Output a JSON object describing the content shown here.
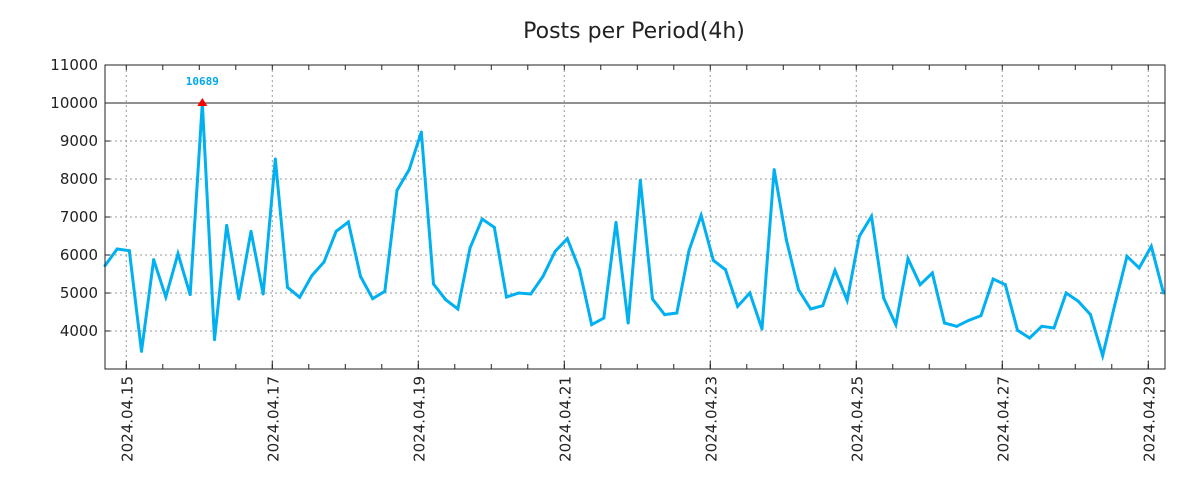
{
  "chart_data": {
    "type": "line",
    "title": "Posts per Period(4h)",
    "xlabel": "",
    "ylabel": "",
    "x_unit": "hours since 2024.04.15 00:00",
    "x_start_hours": -7,
    "step_hours": 4,
    "xlim": [
      -7,
      341.5
    ],
    "ylim": [
      3000,
      11000
    ],
    "yticks": [
      4000,
      5000,
      6000,
      7000,
      8000,
      9000,
      10000,
      11000
    ],
    "ytick_labels": [
      "4000",
      "5000",
      "6000",
      "7000",
      "8000",
      "9000",
      "10000",
      "11000"
    ],
    "xticks_hours": [
      0,
      48,
      96,
      144,
      192,
      240,
      288,
      336
    ],
    "xtick_labels": [
      "2024.04.15",
      "2024.04.17",
      "2024.04.19",
      "2024.04.21",
      "2024.04.23",
      "2024.04.25",
      "2024.04.27",
      "2024.04.29"
    ],
    "minor_xtick_step_hours": 12,
    "threshold_line": 10000,
    "grid": true,
    "series": [
      {
        "name": "Posts",
        "color": "#00b0f0",
        "values": [
          5719,
          6158,
          6114,
          3465,
          5877,
          4895,
          6035,
          4956,
          10689,
          3772,
          6781,
          4842,
          6623,
          4974,
          8526,
          5149,
          4886,
          5456,
          5816,
          6623,
          6868,
          5439,
          4851,
          5044,
          7702,
          8246,
          9237,
          5237,
          4825,
          4579,
          6184,
          6947,
          6728,
          4895,
          5000,
          4974,
          5439,
          6096,
          6430,
          5614,
          4167,
          4342,
          6860,
          4211,
          7965,
          4842,
          4430,
          4474,
          6114,
          7044,
          5860,
          5614,
          4649,
          5000,
          4053,
          8246,
          6404,
          5088,
          4579,
          4667,
          5596,
          4807,
          6491,
          7018,
          4868,
          4167,
          5904,
          5219,
          5526,
          4211,
          4123,
          4281,
          4404,
          5368,
          5219,
          4018,
          3816,
          4123,
          4079,
          5000,
          4781,
          4430,
          3351,
          4693,
          5965,
          5658,
          6228,
          5000
        ]
      }
    ],
    "annotations": [
      {
        "text": "10689",
        "index": 8,
        "marker": "triangle",
        "marker_color": "#ff0000",
        "text_color": "#00a8f0"
      }
    ]
  }
}
